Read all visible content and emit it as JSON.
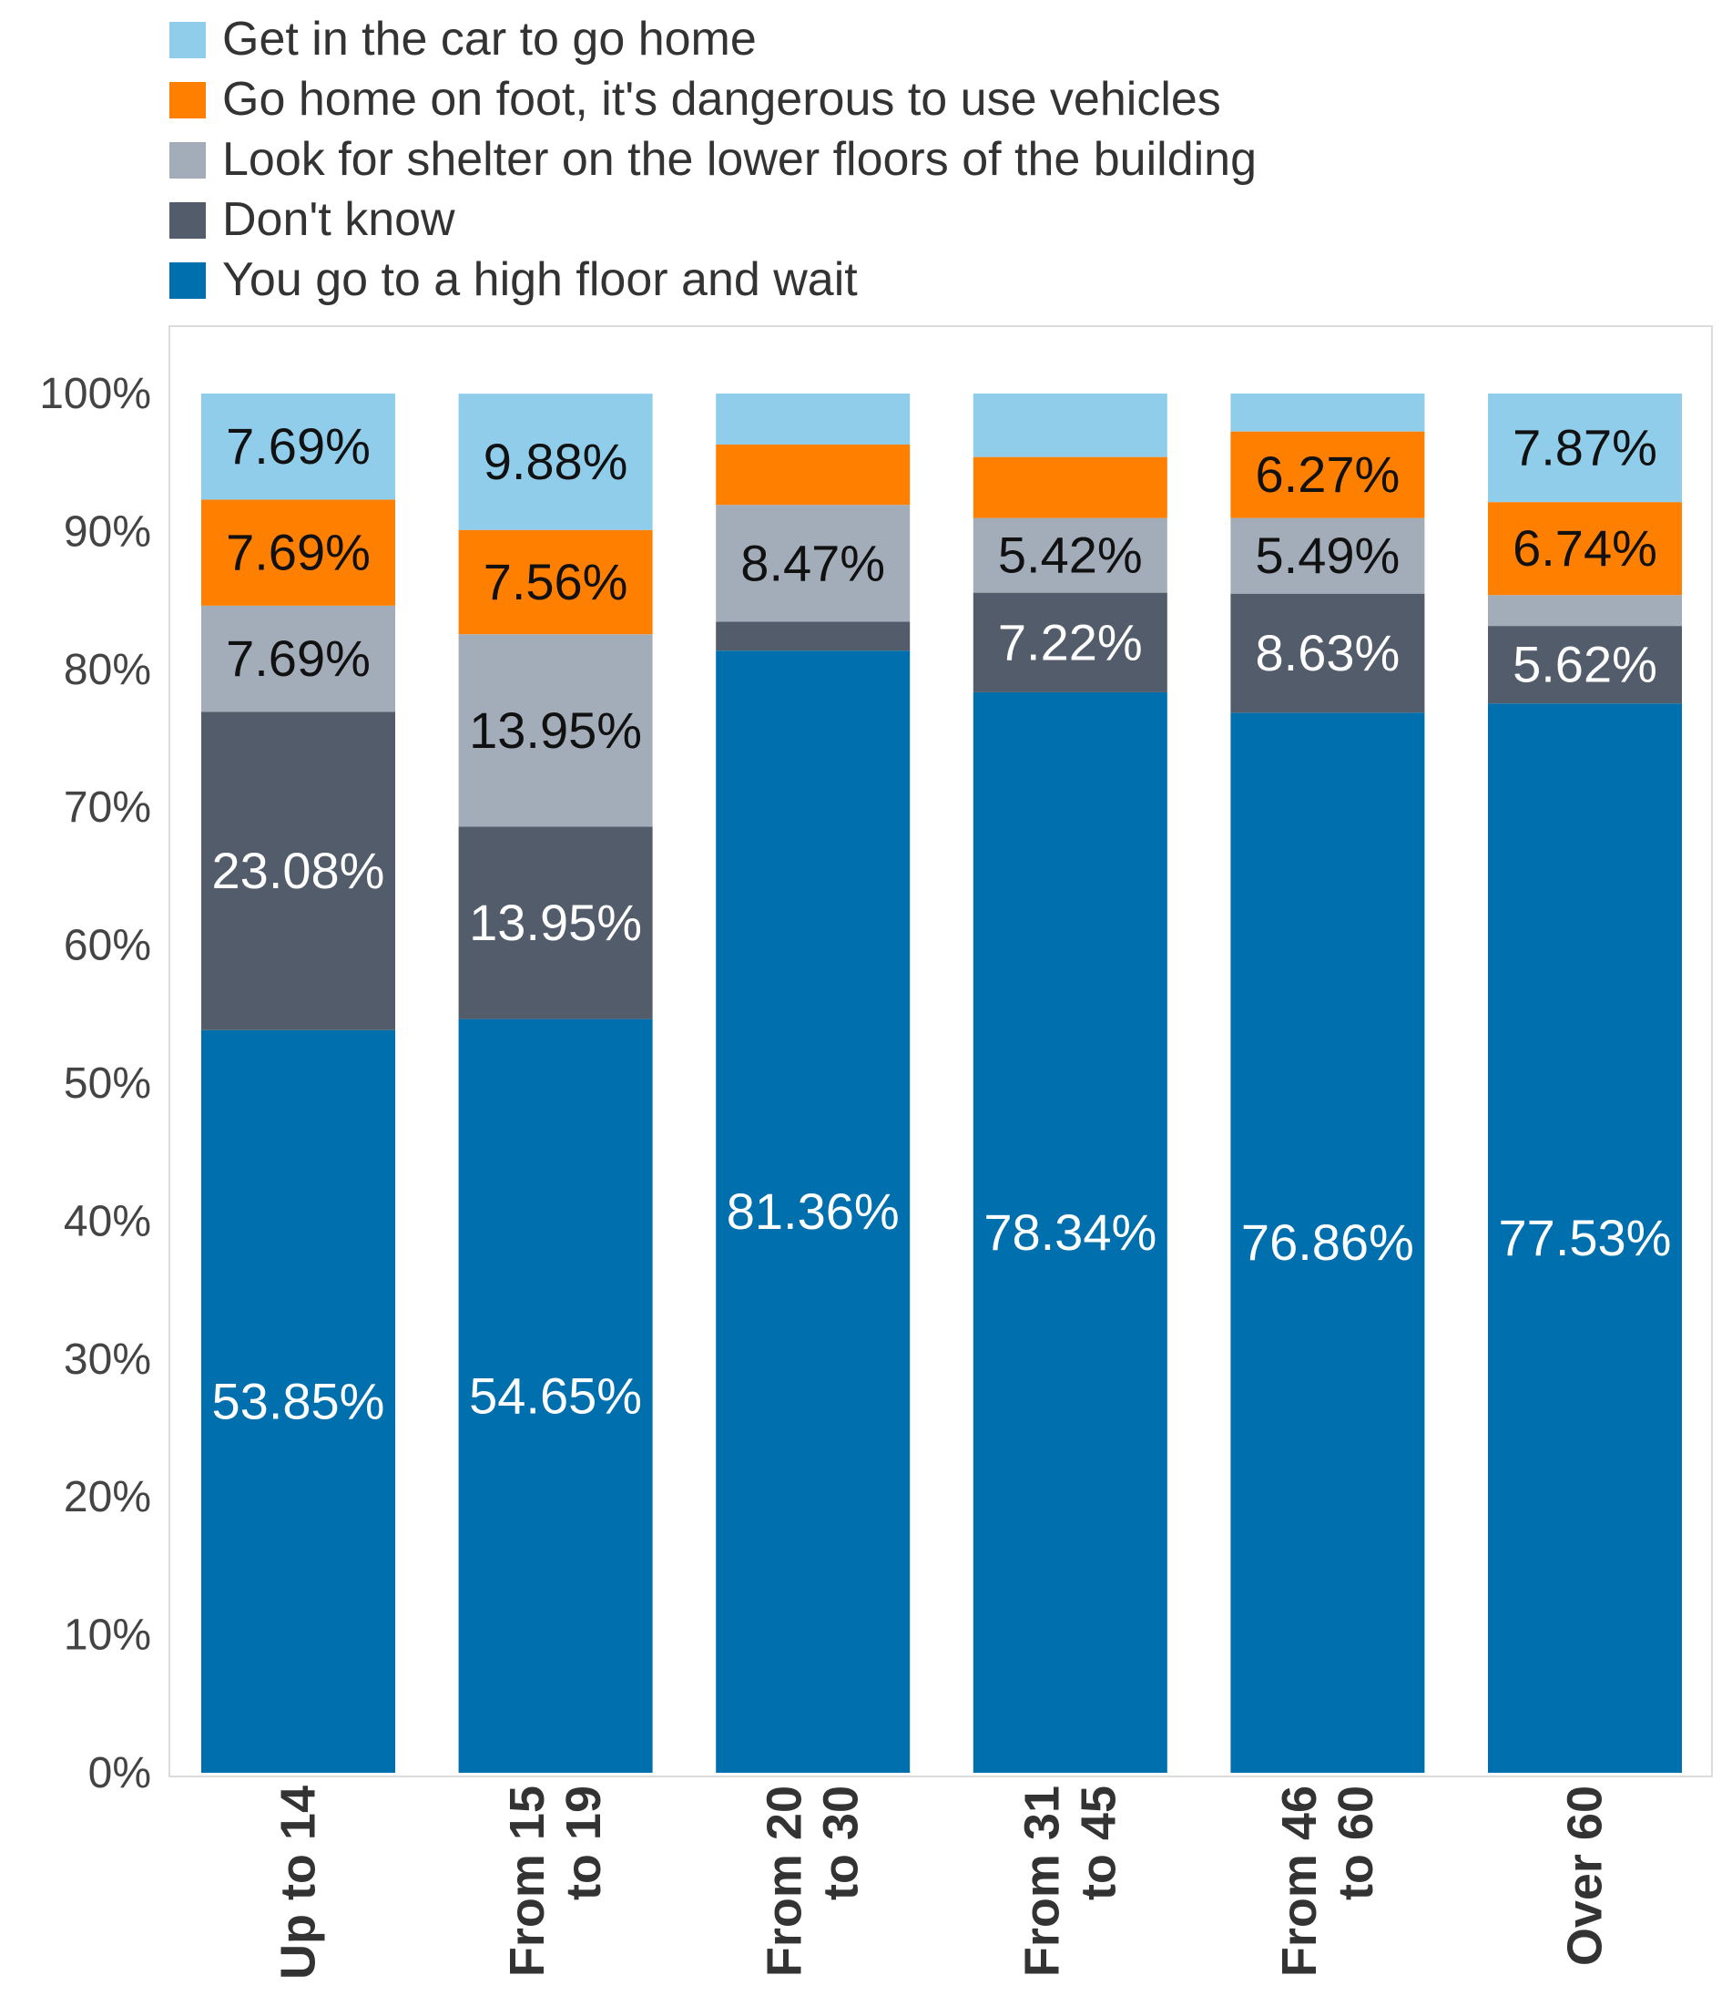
{
  "chart_data": {
    "type": "bar",
    "stacked": true,
    "title": "",
    "xlabel": "",
    "ylabel": "",
    "ylim": [
      0,
      100
    ],
    "yticks": [
      "0%",
      "10%",
      "20%",
      "30%",
      "40%",
      "50%",
      "60%",
      "70%",
      "80%",
      "90%",
      "100%"
    ],
    "legend_position": "top-left",
    "grid": false,
    "categories": [
      "Up to 14",
      "From 15 to 19",
      "From 20 to 30",
      "From 31 to 45",
      "From 46 to 60",
      "Over 60"
    ],
    "category_lines": [
      [
        "Up to 14"
      ],
      [
        "From 15",
        "to 19"
      ],
      [
        "From 20",
        "to 30"
      ],
      [
        "From 31",
        "to 45"
      ],
      [
        "From 46",
        "to 60"
      ],
      [
        "Over 60"
      ]
    ],
    "series": [
      {
        "name": "You go to a high floor and wait",
        "color": "#006FAE",
        "label_color": "#ffffff",
        "values": [
          53.85,
          54.65,
          81.36,
          78.34,
          76.86,
          77.53
        ],
        "labels": [
          "53.85%",
          "54.65%",
          "81.36%",
          "78.34%",
          "76.86%",
          "77.53%"
        ]
      },
      {
        "name": "Don't know",
        "color": "#525C6A",
        "label_color": "#ffffff",
        "values": [
          23.08,
          13.95,
          2.1,
          7.22,
          8.63,
          5.62
        ],
        "labels": [
          "23.08%",
          "13.95%",
          "",
          "7.22%",
          "8.63%",
          "5.62%"
        ]
      },
      {
        "name": "Look for shelter on the lower floors of the building",
        "color": "#A3ADB9",
        "label_color": "#111111",
        "values": [
          7.69,
          13.95,
          8.47,
          5.42,
          5.49,
          2.24
        ],
        "labels": [
          "7.69%",
          "13.95%",
          "8.47%",
          "5.42%",
          "5.49%",
          ""
        ]
      },
      {
        "name": "Go home on foot, it's dangerous to use vehicles",
        "color": "#FF7F00",
        "label_color": "#111111",
        "values": [
          7.69,
          7.56,
          4.37,
          4.42,
          6.27,
          6.74
        ],
        "labels": [
          "7.69%",
          "7.56%",
          "",
          "",
          "6.27%",
          "6.74%"
        ]
      },
      {
        "name": "Get in the car to go home",
        "color": "#8FCDEB",
        "label_color": "#111111",
        "values": [
          7.69,
          9.88,
          3.7,
          4.6,
          2.75,
          7.87
        ],
        "labels": [
          "7.69%",
          "9.88%",
          "",
          "",
          "",
          "7.87%"
        ]
      }
    ],
    "legend_order": [
      4,
      3,
      2,
      1,
      0
    ]
  }
}
